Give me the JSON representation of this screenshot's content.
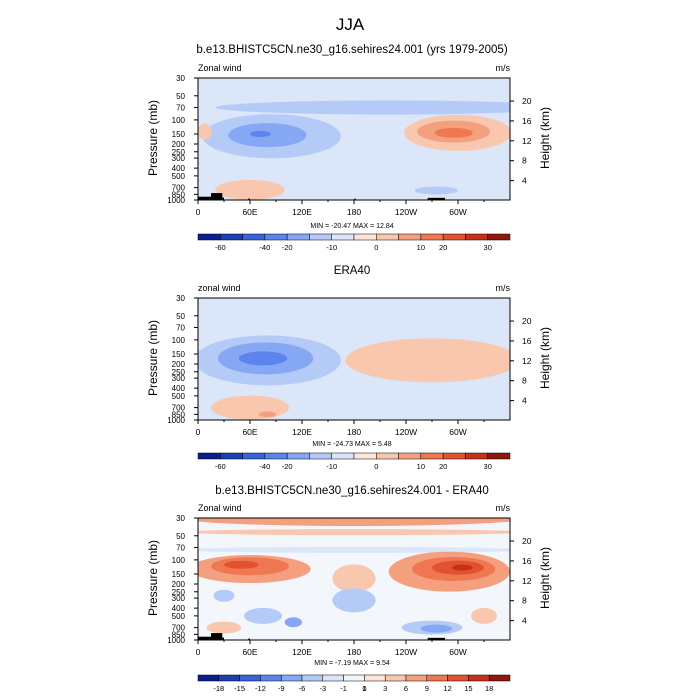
{
  "page_title": "JJA",
  "colors": {
    "wind_scale": [
      "#0a1f8f",
      "#1c3fb5",
      "#3a62db",
      "#5b84ee",
      "#86a8f4",
      "#b5cbf7",
      "#dbe6f9",
      "#fde6d8",
      "#f8c7ad",
      "#f4a07f",
      "#ef7853",
      "#e15330",
      "#c5311b",
      "#8e1710"
    ],
    "diff_scale": [
      "#0a1f8f",
      "#1c3fb5",
      "#3a62db",
      "#5b84ee",
      "#86a8f4",
      "#b5cbf7",
      "#dbe6f9",
      "#f3f6fb",
      "#fde6d8",
      "#f8c7ad",
      "#f4a07f",
      "#ef7853",
      "#e15330",
      "#c5311b",
      "#8e1710"
    ],
    "topography": "#000000"
  },
  "chart_data": [
    {
      "type": "heatmap",
      "id": "model",
      "title": "b.e13.BHISTC5CN.ne30_g16.sehires24.001 (yrs 1979-2005)",
      "left_label": "Zonal wind",
      "units": "m/s",
      "ylabel": "Pressure (mb)",
      "ylabel_right": "Height (km)",
      "xticks": [
        "0",
        "60E",
        "120E",
        "180",
        "120W",
        "60W"
      ],
      "yticks": [
        "30",
        "50",
        "70",
        "100",
        "150",
        "200",
        "250",
        "300",
        "400",
        "500",
        "700",
        "850",
        "1000"
      ],
      "yticks_right": [
        "20",
        "16",
        "12",
        "8",
        "4"
      ],
      "stats": "MIN = -20.47  MAX =  12.84",
      "min": -20.47,
      "max": 12.84,
      "colorbar_labels": [
        "-60",
        "-40",
        "-20",
        "-10",
        "0",
        "10",
        "20",
        "30"
      ],
      "scale": "wind_scale"
    },
    {
      "type": "heatmap",
      "id": "obs",
      "title": "ERA40",
      "left_label": "zonal wind",
      "units": "m/s",
      "ylabel": "Pressure (mb)",
      "ylabel_right": "Height (km)",
      "xticks": [
        "0",
        "60E",
        "120E",
        "180",
        "120W",
        "60W"
      ],
      "yticks": [
        "30",
        "50",
        "70",
        "100",
        "150",
        "200",
        "250",
        "300",
        "400",
        "500",
        "700",
        "850",
        "1000"
      ],
      "yticks_right": [
        "20",
        "16",
        "12",
        "8",
        "4"
      ],
      "stats": "MIN = -24.73  MAX =   5.48",
      "min": -24.73,
      "max": 5.48,
      "colorbar_labels": [
        "-60",
        "-40",
        "-20",
        "-10",
        "0",
        "10",
        "20",
        "30"
      ],
      "scale": "wind_scale"
    },
    {
      "type": "heatmap",
      "id": "diff",
      "title": "b.e13.BHISTC5CN.ne30_g16.sehires24.001 - ERA40",
      "left_label": "Zonal wind",
      "units": "m/s",
      "ylabel": "Pressure (mb)",
      "ylabel_right": "Height (km)",
      "xticks": [
        "0",
        "60E",
        "120E",
        "180",
        "120W",
        "60W"
      ],
      "yticks": [
        "30",
        "50",
        "70",
        "100",
        "150",
        "200",
        "250",
        "300",
        "400",
        "500",
        "700",
        "850",
        "1000"
      ],
      "yticks_right": [
        "20",
        "16",
        "12",
        "8",
        "4"
      ],
      "stats": "MIN =  -7.19  MAX =   9.54",
      "min": -7.19,
      "max": 9.54,
      "colorbar_labels": [
        "-18",
        "-15",
        "-12",
        "-9",
        "-6",
        "-3",
        "-1",
        "0",
        "1",
        "3",
        "6",
        "9",
        "12",
        "15",
        "18"
      ],
      "scale": "diff_scale"
    }
  ]
}
